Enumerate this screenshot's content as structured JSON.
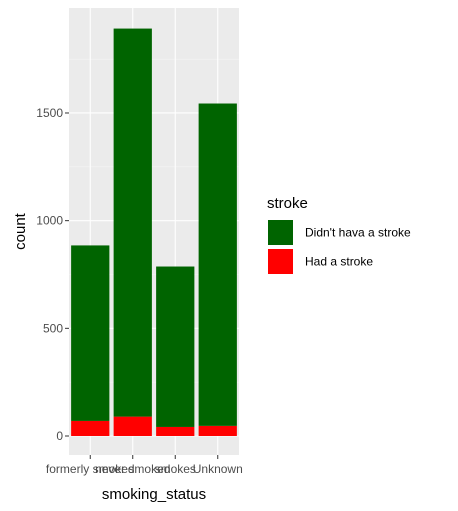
{
  "chart_data": {
    "type": "bar",
    "stacked": true,
    "categories": [
      "formerly smoked",
      "never smoked",
      "smokes",
      "Unknown"
    ],
    "series": [
      {
        "name": "Didn't hava a stroke",
        "color": "#006400",
        "values": [
          815,
          1802,
          745,
          1497
        ]
      },
      {
        "name": "Had a stroke",
        "color": "#ff0000",
        "values": [
          70,
          90,
          42,
          47
        ]
      }
    ],
    "xlabel": "smoking_status",
    "ylabel": "count",
    "ylim": [
      0,
      1960
    ],
    "yticks": [
      0,
      500,
      1000,
      1500
    ],
    "grid": true,
    "panel_background": "#ebebeb",
    "legend": {
      "title": "stroke",
      "placement": "right"
    }
  }
}
